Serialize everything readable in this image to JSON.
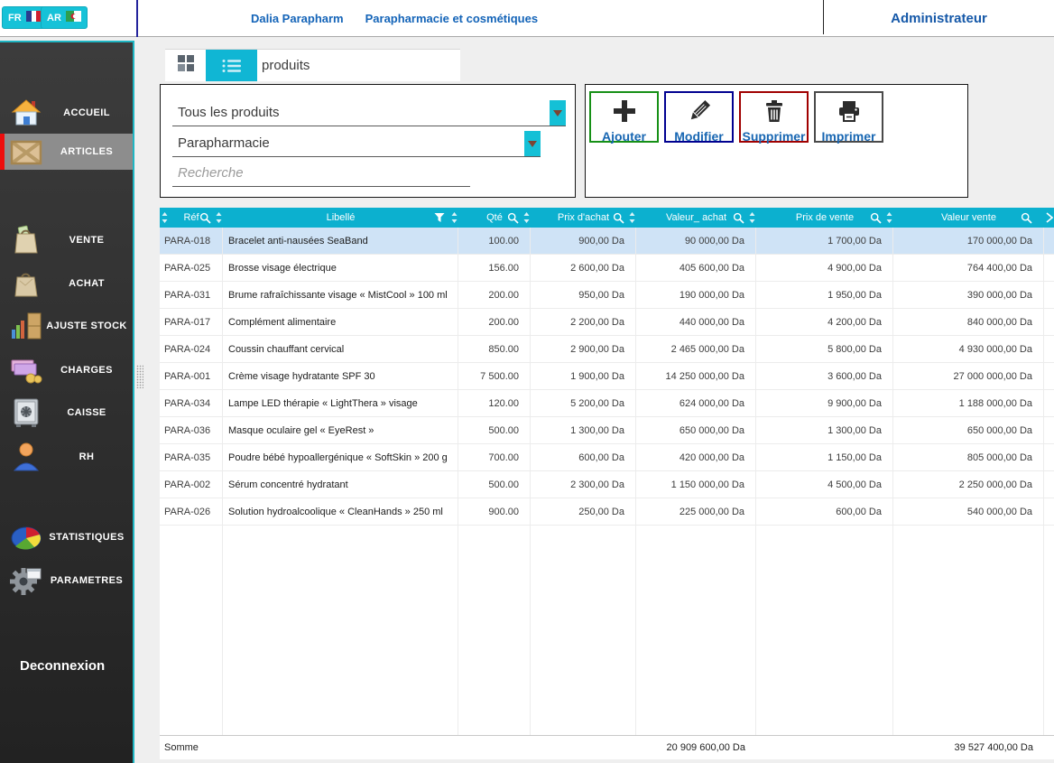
{
  "topbar": {
    "lang_fr": "FR",
    "lang_ar": "AR",
    "app_title": "Dalia Parapharm",
    "app_subtitle": "Parapharmacie et cosmétiques",
    "user_role": "Administrateur"
  },
  "sidebar": {
    "items": [
      {
        "label": "ACCUEIL",
        "icon": "home-icon",
        "active": false
      },
      {
        "label": "ARTICLES",
        "icon": "crate-icon",
        "active": true
      },
      {
        "label": "VENTE",
        "icon": "sale-bag-icon",
        "active": false
      },
      {
        "label": "ACHAT",
        "icon": "purchase-bag-icon",
        "active": false
      },
      {
        "label": "AJUSTE STOCK",
        "icon": "stock-shelf-icon",
        "active": false
      },
      {
        "label": "CHARGES",
        "icon": "money-icon",
        "active": false
      },
      {
        "label": "CAISSE",
        "icon": "safe-icon",
        "active": false
      },
      {
        "label": "RH",
        "icon": "person-icon",
        "active": false
      },
      {
        "label": "STATISTIQUES",
        "icon": "pie-chart-icon",
        "active": false
      },
      {
        "label": "PARAMETRES",
        "icon": "gear-icon",
        "active": false
      }
    ],
    "logout_label": "Deconnexion"
  },
  "tabs": {
    "active_label": "produits"
  },
  "filters": {
    "category_select": "Tous les produits",
    "family_select": "Parapharmacie",
    "search_placeholder": "Recherche"
  },
  "toolbar": {
    "add_label": "Ajouter",
    "edit_label": "Modifier",
    "delete_label": "Supprimer",
    "print_label": "Imprimer"
  },
  "table": {
    "columns": [
      "Réf",
      "Libellé",
      "Qté",
      "Prix d'achat",
      "Valeur_ achat",
      "Prix de vente",
      "Valeur vente"
    ],
    "rows": [
      {
        "ref": "PARA-018",
        "libelle": "Bracelet anti-nausées SeaBand",
        "qte": "100.00",
        "prix_achat": "900,00 Da",
        "valeur_achat": "90 000,00 Da",
        "prix_vente": "1 700,00 Da",
        "valeur_vente": "170 000,00 Da",
        "selected": true
      },
      {
        "ref": "PARA-025",
        "libelle": "Brosse visage électrique",
        "qte": "156.00",
        "prix_achat": "2 600,00 Da",
        "valeur_achat": "405 600,00 Da",
        "prix_vente": "4 900,00 Da",
        "valeur_vente": "764 400,00 Da",
        "selected": false
      },
      {
        "ref": "PARA-031",
        "libelle": "Brume rafraîchissante visage « MistCool » 100 ml",
        "qte": "200.00",
        "prix_achat": "950,00 Da",
        "valeur_achat": "190 000,00 Da",
        "prix_vente": "1 950,00 Da",
        "valeur_vente": "390 000,00 Da",
        "selected": false
      },
      {
        "ref": "PARA-017",
        "libelle": "Complément alimentaire",
        "qte": "200.00",
        "prix_achat": "2 200,00 Da",
        "valeur_achat": "440 000,00 Da",
        "prix_vente": "4 200,00 Da",
        "valeur_vente": "840 000,00 Da",
        "selected": false
      },
      {
        "ref": "PARA-024",
        "libelle": "Coussin chauffant cervical",
        "qte": "850.00",
        "prix_achat": "2 900,00 Da",
        "valeur_achat": "2 465 000,00 Da",
        "prix_vente": "5 800,00 Da",
        "valeur_vente": "4 930 000,00 Da",
        "selected": false
      },
      {
        "ref": "PARA-001",
        "libelle": "Crème visage hydratante SPF 30",
        "qte": "7 500.00",
        "prix_achat": "1 900,00 Da",
        "valeur_achat": "14 250 000,00 Da",
        "prix_vente": "3 600,00 Da",
        "valeur_vente": "27 000 000,00 Da",
        "selected": false
      },
      {
        "ref": "PARA-034",
        "libelle": "Lampe LED thérapie « LightThera » visage",
        "qte": "120.00",
        "prix_achat": "5 200,00 Da",
        "valeur_achat": "624 000,00 Da",
        "prix_vente": "9 900,00 Da",
        "valeur_vente": "1 188 000,00 Da",
        "selected": false
      },
      {
        "ref": "PARA-036",
        "libelle": "Masque oculaire gel « EyeRest »",
        "qte": "500.00",
        "prix_achat": "1 300,00 Da",
        "valeur_achat": "650 000,00 Da",
        "prix_vente": "1 300,00 Da",
        "valeur_vente": "650 000,00 Da",
        "selected": false
      },
      {
        "ref": "PARA-035",
        "libelle": "Poudre bébé hypoallergénique « SoftSkin » 200 g",
        "qte": "700.00",
        "prix_achat": "600,00 Da",
        "valeur_achat": "420 000,00 Da",
        "prix_vente": "1 150,00 Da",
        "valeur_vente": "805 000,00 Da",
        "selected": false
      },
      {
        "ref": "PARA-002",
        "libelle": "Sérum concentré hydratant",
        "qte": "500.00",
        "prix_achat": "2 300,00 Da",
        "valeur_achat": "1 150 000,00 Da",
        "prix_vente": "4 500,00 Da",
        "valeur_vente": "2 250 000,00 Da",
        "selected": false
      },
      {
        "ref": "PARA-026",
        "libelle": "Solution hydroalcoolique « CleanHands » 250 ml",
        "qte": "900.00",
        "prix_achat": "250,00 Da",
        "valeur_achat": "225 000,00 Da",
        "prix_vente": "600,00 Da",
        "valeur_vente": "540 000,00 Da",
        "selected": false
      }
    ],
    "footer": {
      "label": "Somme",
      "valeur_achat_total": "20 909 600,00 Da",
      "valeur_vente_total": "39 527 400,00 Da"
    }
  },
  "colors": {
    "accent_cyan": "#14c0d6",
    "header_cyan": "#0cb0cf",
    "selected_row": "#cfe3f6",
    "active_indicator_red": "#ee0d0d",
    "sidebar_active_gray": "#8d8d8d",
    "brand_blue": "#1464b8",
    "button_label_blue": "#1766b2",
    "border_add_green": "#169016",
    "border_edit_navy": "#000090",
    "border_delete_red": "#a00000",
    "border_print_gray": "#4a4a4a"
  }
}
